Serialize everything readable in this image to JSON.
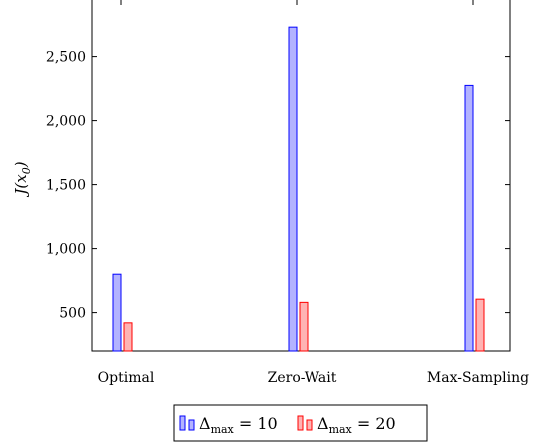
{
  "chart_data": {
    "type": "bar",
    "categories": [
      "Optimal",
      "Zero-Wait",
      "Max-Sampling"
    ],
    "series": [
      {
        "name": "Δmax = 10",
        "values": [
          800,
          2730,
          2275
        ],
        "color": "#0000ff",
        "fill": "#b3b3ff"
      },
      {
        "name": "Δmax = 20",
        "values": [
          420,
          580,
          605
        ],
        "color": "#ff0000",
        "fill": "#ffb3b3"
      }
    ],
    "ylabel": "J(x0)",
    "ylim": [
      200,
      2950
    ],
    "yticks": [
      500,
      1000,
      1500,
      2000,
      2500
    ],
    "ytick_labels": [
      "500",
      "1,000",
      "1,500",
      "2,000",
      "2,500"
    ],
    "legend_position": "bottom-center"
  }
}
